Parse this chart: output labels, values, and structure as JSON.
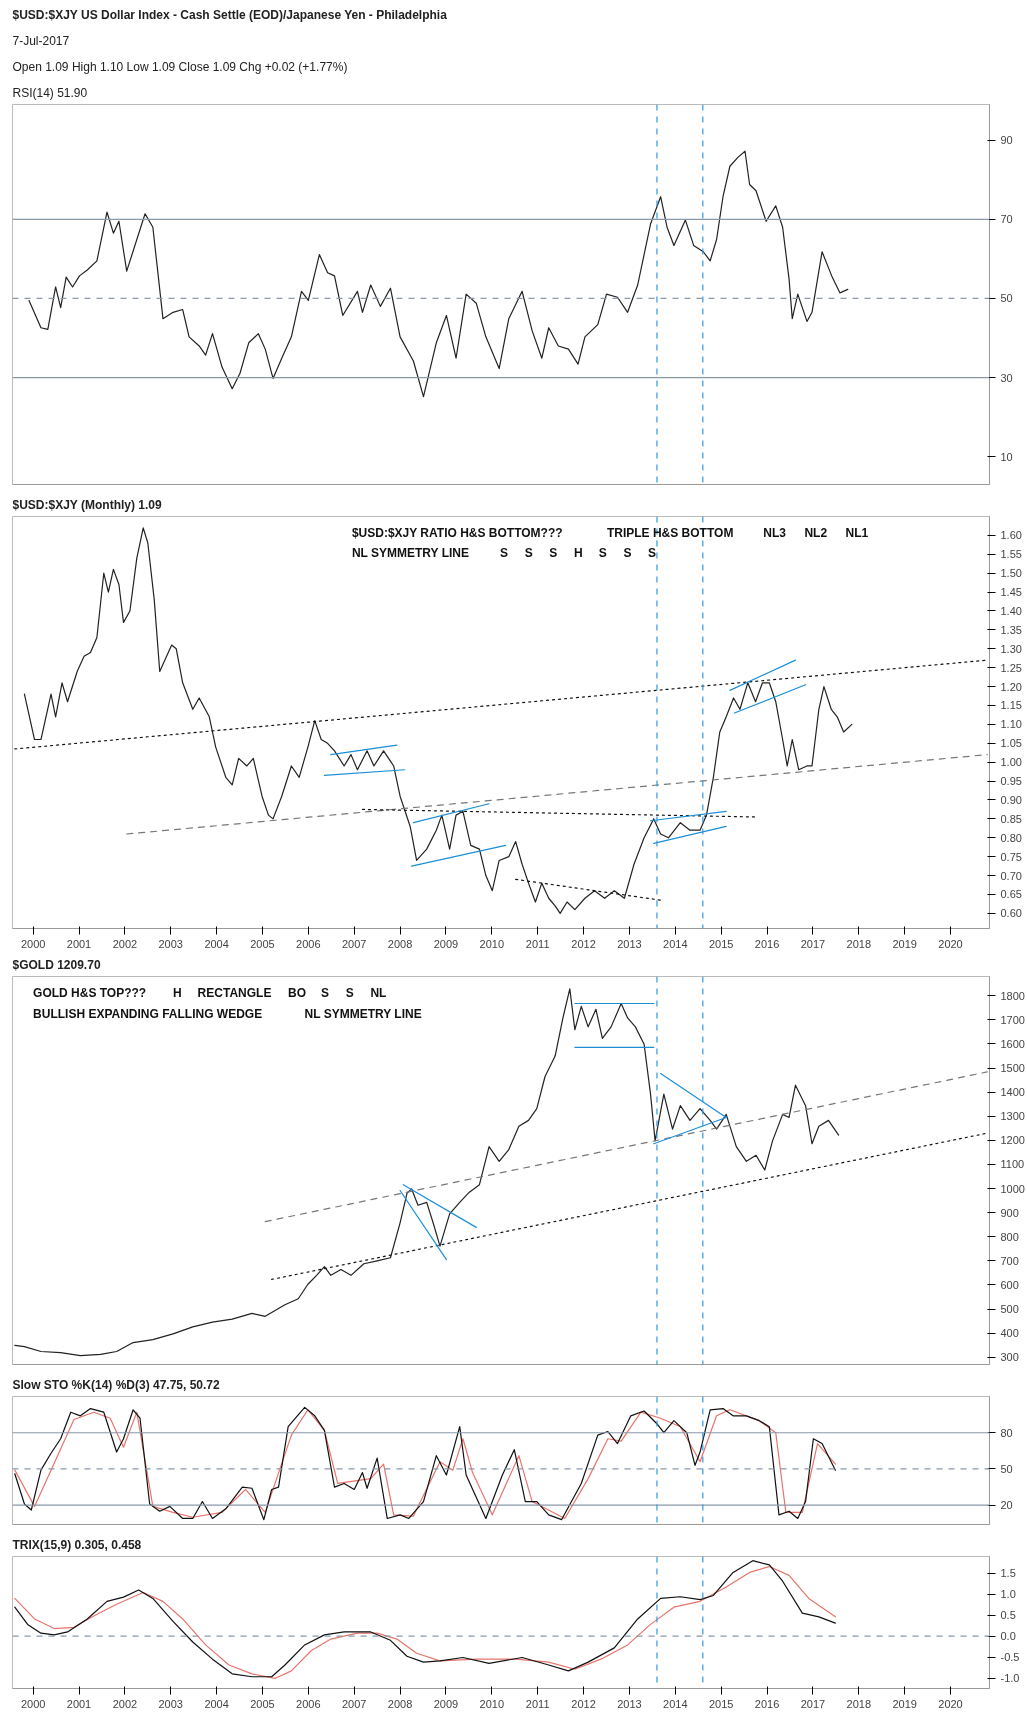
{
  "chart_data": [
    {
      "type": "line",
      "title": "$USD:$XJY US Dollar Index - Cash Settle (EOD)/Japanese Yen - Philadelphia",
      "subtitle": "7-Jul-2017",
      "annotations": [
        "Open 1.09 High 1.10 Low 1.09 Close 1.09 Chg +0.02 (+1.77%)",
        "RSI(14) 51.90"
      ],
      "xlim": [
        1999.55,
        2020.85
      ],
      "xticks": [
        2000,
        2001,
        2002,
        2003,
        2004,
        2005,
        2006,
        2007,
        2008,
        2009,
        2010,
        2011,
        2012,
        2013,
        2014,
        2015,
        2016,
        2017,
        2018,
        2019,
        2020
      ],
      "tick_labels": "y",
      "ylim": [
        3,
        99
      ],
      "yticks": [
        10,
        30,
        50,
        70,
        90
      ],
      "ref_lines": [
        {
          "axis": "y",
          "value": 30,
          "color": "#8899aa",
          "line_style": "solid"
        },
        {
          "axis": "y",
          "value": 50,
          "color": "#8899aa",
          "line_style": "dashed"
        },
        {
          "axis": "y",
          "value": 70,
          "color": "#8899aa",
          "line_style": "solid"
        },
        {
          "axis": "x",
          "value": 2013.6,
          "color": "#3399dd",
          "line_style": "dashed"
        },
        {
          "axis": "x",
          "value": 2014.6,
          "color": "#3399dd",
          "line_style": "dashed"
        }
      ],
      "series": [
        {
          "color": "#222222",
          "x": [
            1999.91,
            2000.17,
            2000.32,
            2000.49,
            2000.6,
            2000.72,
            2000.86,
            2001.01,
            2001.18,
            2001.39,
            2001.61,
            2001.75,
            2001.87,
            2002.04,
            2002.44,
            2002.61,
            2002.83,
            2003.05,
            2003.26,
            2003.4,
            2003.62,
            2003.76,
            2003.91,
            2004.12,
            2004.34,
            2004.51,
            2004.7,
            2004.91,
            2005.06,
            2005.23,
            2005.42,
            2005.63,
            2005.85,
            2006.0,
            2006.24,
            2006.42,
            2006.57,
            2006.75,
            2007.07,
            2007.18,
            2007.36,
            2007.57,
            2007.79,
            2008.0,
            2008.29,
            2008.51,
            2008.79,
            2009.01,
            2009.22,
            2009.44,
            2009.66,
            2009.87,
            2010.16,
            2010.37,
            2010.66,
            2010.88,
            2011.09,
            2011.24,
            2011.45,
            2011.67,
            2011.88,
            2012.03,
            2012.31,
            2012.5,
            2012.74,
            2012.96,
            2013.18,
            2013.46,
            2013.68,
            2013.82,
            2013.97,
            2014.22,
            2014.4,
            2014.61,
            2014.76,
            2014.9,
            2015.04,
            2015.19,
            2015.37,
            2015.52,
            2015.62,
            2015.76,
            2015.98,
            2016.19,
            2016.34,
            2016.48,
            2016.55,
            2016.67,
            2016.87,
            2016.98,
            2017.2,
            2017.41,
            2017.59,
            2017.76
          ],
          "values": [
            49.5,
            42.6,
            42.2,
            52.9,
            47.7,
            55.4,
            52.9,
            55.7,
            57.2,
            59.5,
            71.8,
            66.5,
            69.5,
            56.9,
            71.4,
            68,
            44.9,
            46.5,
            47.2,
            40.3,
            38,
            35.7,
            41.1,
            32.6,
            27.2,
            31.1,
            38.8,
            41.1,
            37.2,
            29.8,
            34.9,
            40.3,
            51.8,
            49.5,
            61.1,
            56.5,
            55.7,
            45.7,
            51.8,
            46.5,
            53.4,
            48,
            52.6,
            40.3,
            34.2,
            25.2,
            38.8,
            45.7,
            34.9,
            51.1,
            48.8,
            40.3,
            32.3,
            44.9,
            51.8,
            41.8,
            34.9,
            42.6,
            38,
            37.2,
            33.4,
            40.3,
            43.4,
            51.1,
            50.3,
            46.5,
            53.4,
            68.8,
            75.7,
            68,
            63.4,
            69.8,
            63.4,
            61.8,
            59.5,
            64.9,
            75.7,
            83.4,
            85.7,
            87.2,
            78.8,
            77.2,
            69.5,
            73.4,
            68,
            54.9,
            44.9,
            51.1,
            44.2,
            46.5,
            61.8,
            55.7,
            51.4,
            52.3
          ]
        }
      ]
    },
    {
      "type": "line",
      "title": "$USD:$XJY (Monthly) 1.09",
      "annotations": [
        "$USD:$XJY RATIO H&S BOTTOM???",
        "TRIPLE H&S BOTTOM",
        "NL3",
        "NL2",
        "NL1",
        "NL SYMMETRY LINE",
        "S",
        "S",
        "S",
        "H",
        "S",
        "S",
        "S"
      ],
      "xlim": [
        1999.55,
        2020.85
      ],
      "xticks": [
        2000,
        2001,
        2002,
        2003,
        2004,
        2005,
        2006,
        2007,
        2008,
        2009,
        2010,
        2011,
        2012,
        2013,
        2014,
        2015,
        2016,
        2017,
        2018,
        2019,
        2020
      ],
      "ylim": [
        0.56,
        1.65
      ],
      "yticks": [
        {
          "value": 0.6,
          "label": "0.60"
        },
        {
          "value": 0.65,
          "label": "0.65"
        },
        {
          "value": 0.7,
          "label": "0.70"
        },
        {
          "value": 0.75,
          "label": "0.75"
        },
        {
          "value": 0.8,
          "label": "0.80"
        },
        {
          "value": 0.85,
          "label": "0.85"
        },
        {
          "value": 0.9,
          "label": "0.90"
        },
        {
          "value": 0.95,
          "label": "0.95"
        },
        {
          "value": 1.0,
          "label": "1.00"
        },
        {
          "value": 1.05,
          "label": "1.05"
        },
        {
          "value": 1.1,
          "label": "1.10"
        },
        {
          "value": 1.15,
          "label": "1.15"
        },
        {
          "value": 1.2,
          "label": "1.20"
        },
        {
          "value": 1.25,
          "label": "1.25"
        },
        {
          "value": 1.3,
          "label": "1.30"
        },
        {
          "value": 1.35,
          "label": "1.35"
        },
        {
          "value": 1.4,
          "label": "1.40"
        },
        {
          "value": 1.45,
          "label": "1.45"
        },
        {
          "value": 1.5,
          "label": "1.50"
        },
        {
          "value": 1.55,
          "label": "1.55"
        },
        {
          "value": 1.6,
          "label": "1.60"
        }
      ],
      "ref_lines": [
        {
          "axis": "x",
          "value": 2013.6,
          "color": "#3399dd",
          "line_style": "dashed"
        },
        {
          "axis": "x",
          "value": 2014.6,
          "color": "#3399dd",
          "line_style": "dashed"
        }
      ],
      "series": [
        {
          "color": "#222222",
          "x": [
            1999.81,
            2000.03,
            2000.17,
            2000.39,
            2000.49,
            2000.63,
            2000.75,
            2000.96,
            2001.11,
            2001.25,
            2001.39,
            2001.54,
            2001.64,
            2001.75,
            2001.87,
            2001.97,
            2002.11,
            2002.26,
            2002.4,
            2002.5,
            2002.64,
            2002.76,
            2002.87,
            2003.02,
            2003.12,
            2003.26,
            2003.48,
            2003.62,
            2003.84,
            2003.98,
            2004.2,
            2004.34,
            2004.48,
            2004.66,
            2004.8,
            2004.99,
            2005.13,
            2005.23,
            2005.42,
            2005.63,
            2005.8,
            2005.99,
            2006.14,
            2006.28,
            2006.42,
            2006.57,
            2006.78,
            2006.93,
            2007.07,
            2007.28,
            2007.43,
            2007.64,
            2007.86,
            2008.0,
            2008.22,
            2008.36,
            2008.58,
            2008.79,
            2008.91,
            2009.08,
            2009.22,
            2009.37,
            2009.54,
            2009.73,
            2009.87,
            2010.01,
            2010.16,
            2010.37,
            2010.52,
            2010.66,
            2010.8,
            2010.95,
            2011.09,
            2011.24,
            2011.38,
            2011.49,
            2011.64,
            2011.81,
            2012.03,
            2012.24,
            2012.46,
            2012.67,
            2012.89,
            2013.1,
            2013.32,
            2013.53,
            2013.68,
            2013.85,
            2014.11,
            2014.32,
            2014.54,
            2014.68,
            2014.83,
            2014.97,
            2015.11,
            2015.27,
            2015.41,
            2015.58,
            2015.75,
            2015.9,
            2016.05,
            2016.19,
            2016.34,
            2016.44,
            2016.55,
            2016.69,
            2016.87,
            2016.98,
            2017.13,
            2017.24,
            2017.4,
            2017.53,
            2017.67,
            2017.85
          ],
          "values": [
            1.18,
            1.06,
            1.06,
            1.18,
            1.12,
            1.21,
            1.16,
            1.24,
            1.28,
            1.29,
            1.33,
            1.5,
            1.45,
            1.51,
            1.47,
            1.37,
            1.4,
            1.54,
            1.62,
            1.58,
            1.43,
            1.24,
            1.27,
            1.31,
            1.3,
            1.21,
            1.14,
            1.17,
            1.12,
            1.04,
            0.96,
            0.94,
            1.01,
            0.99,
            1.01,
            0.91,
            0.86,
            0.85,
            0.91,
            0.99,
            0.96,
            1.04,
            1.11,
            1.06,
            1.05,
            1.03,
            0.99,
            1.02,
            0.98,
            1.03,
            0.99,
            1.03,
            0.99,
            0.91,
            0.83,
            0.74,
            0.77,
            0.82,
            0.86,
            0.77,
            0.86,
            0.87,
            0.78,
            0.77,
            0.7,
            0.66,
            0.74,
            0.75,
            0.79,
            0.73,
            0.68,
            0.63,
            0.68,
            0.64,
            0.62,
            0.6,
            0.63,
            0.61,
            0.64,
            0.66,
            0.64,
            0.66,
            0.64,
            0.73,
            0.8,
            0.85,
            0.81,
            0.8,
            0.84,
            0.82,
            0.82,
            0.86,
            0.96,
            1.08,
            1.12,
            1.17,
            1.14,
            1.21,
            1.16,
            1.21,
            1.21,
            1.16,
            1.06,
            0.99,
            1.06,
            0.98,
            0.99,
            0.99,
            1.14,
            1.2,
            1.14,
            1.12,
            1.08,
            1.1
          ]
        },
        {
          "type": "line",
          "color": "#111111",
          "line_style": "dotted",
          "x": [
            1999.6,
            2020.8
          ],
          "values": [
            1.035,
            1.27
          ]
        },
        {
          "type": "line",
          "color": "#777777",
          "line_style": "dashed",
          "x": [
            2002.04,
            2020.8
          ],
          "values": [
            0.81,
            1.02
          ]
        },
        {
          "type": "line",
          "color": "#111111",
          "line_style": "dotted",
          "x": [
            2007.18,
            2015.76
          ],
          "values": [
            0.875,
            0.855
          ]
        },
        {
          "type": "line",
          "color": "#111111",
          "line_style": "dotted",
          "x": [
            2010.52,
            2013.68
          ],
          "values": [
            0.69,
            0.635
          ]
        },
        {
          "type": "line",
          "color": "#1a8fd8",
          "line_style": "solid",
          "x": [
            2006.49,
            2007.93
          ],
          "values": [
            1.02,
            1.045
          ]
        },
        {
          "type": "line",
          "color": "#1a8fd8",
          "line_style": "solid",
          "x": [
            2006.35,
            2008.1
          ],
          "values": [
            0.965,
            0.98
          ]
        },
        {
          "type": "line",
          "color": "#1a8fd8",
          "line_style": "solid",
          "x": [
            2008.29,
            2009.94
          ],
          "values": [
            0.84,
            0.89
          ]
        },
        {
          "type": "line",
          "color": "#1a8fd8",
          "line_style": "solid",
          "x": [
            2008.25,
            2010.3
          ],
          "values": [
            0.725,
            0.78
          ]
        },
        {
          "type": "line",
          "color": "#1a8fd8",
          "line_style": "solid",
          "x": [
            2013.46,
            2015.11
          ],
          "values": [
            0.845,
            0.87
          ]
        },
        {
          "type": "line",
          "color": "#1a8fd8",
          "line_style": "solid",
          "x": [
            2013.53,
            2015.11
          ],
          "values": [
            0.785,
            0.83
          ]
        },
        {
          "type": "line",
          "color": "#1a8fd8",
          "line_style": "solid",
          "x": [
            2015.19,
            2016.62
          ],
          "values": [
            1.19,
            1.27
          ]
        },
        {
          "type": "line",
          "color": "#1a8fd8",
          "line_style": "solid",
          "x": [
            2015.29,
            2016.84
          ],
          "values": [
            1.13,
            1.205
          ]
        }
      ]
    },
    {
      "type": "line",
      "title": "$GOLD 1209.70",
      "annotations": [
        "GOLD H&S TOP???",
        "H",
        "RECTANGLE",
        "BO",
        "S",
        "S",
        "NL",
        "BULLISH EXPANDING FALLING WEDGE",
        "NL SYMMETRY LINE"
      ],
      "xlim": [
        1999.55,
        2020.85
      ],
      "xticks": [
        2000,
        2001,
        2002,
        2003,
        2004,
        2005,
        2006,
        2007,
        2008,
        2009,
        2010,
        2011,
        2012,
        2013,
        2014,
        2015,
        2016,
        2017,
        2018,
        2019,
        2020
      ],
      "tick_labels": "y",
      "ylim": [
        270,
        1880
      ],
      "yticks": [
        300,
        400,
        500,
        600,
        700,
        800,
        900,
        1000,
        1100,
        1200,
        1300,
        1400,
        1500,
        1600,
        1700,
        1800
      ],
      "ref_lines": [
        {
          "axis": "x",
          "value": 2013.6,
          "color": "#3399dd",
          "line_style": "dashed"
        },
        {
          "axis": "x",
          "value": 2014.6,
          "color": "#3399dd",
          "line_style": "dashed"
        }
      ],
      "series": [
        {
          "color": "#222222",
          "x": [
            1999.6,
            1999.81,
            2000.17,
            2000.6,
            2001.03,
            2001.47,
            2001.82,
            2002.18,
            2002.61,
            2003.05,
            2003.48,
            2003.91,
            2004.34,
            2004.77,
            2005.06,
            2005.49,
            2005.78,
            2005.99,
            2006.18,
            2006.35,
            2006.49,
            2006.71,
            2006.93,
            2007.21,
            2007.5,
            2007.79,
            2008.0,
            2008.15,
            2008.25,
            2008.39,
            2008.58,
            2008.72,
            2008.87,
            2009.08,
            2009.3,
            2009.51,
            2009.73,
            2009.94,
            2010.16,
            2010.37,
            2010.59,
            2010.8,
            2010.98,
            2011.16,
            2011.38,
            2011.55,
            2011.7,
            2011.81,
            2011.95,
            2012.1,
            2012.27,
            2012.41,
            2012.6,
            2012.82,
            2012.96,
            2013.13,
            2013.32,
            2013.46,
            2013.56,
            2013.75,
            2013.94,
            2014.11,
            2014.32,
            2014.54,
            2014.76,
            2014.9,
            2015.11,
            2015.33,
            2015.55,
            2015.76,
            2015.95,
            2016.12,
            2016.34,
            2016.48,
            2016.62,
            2016.84,
            2016.98,
            2017.13,
            2017.34,
            2017.56
          ],
          "values": [
            349,
            344,
            324,
            319,
            307,
            312,
            324,
            361,
            373,
            397,
            426,
            446,
            458,
            482,
            470,
            518,
            543,
            603,
            640,
            676,
            640,
            664,
            640,
            688,
            700,
            713,
            858,
            980,
            999,
            931,
            943,
            858,
            761,
            895,
            943,
            985,
            1016,
            1174,
            1113,
            1162,
            1259,
            1283,
            1332,
            1465,
            1550,
            1708,
            1829,
            1659,
            1756,
            1671,
            1744,
            1623,
            1671,
            1768,
            1708,
            1671,
            1599,
            1392,
            1198,
            1392,
            1247,
            1344,
            1283,
            1332,
            1283,
            1247,
            1308,
            1174,
            1113,
            1138,
            1077,
            1198,
            1308,
            1295,
            1429,
            1344,
            1186,
            1259,
            1283,
            1222
          ]
        },
        {
          "type": "line",
          "color": "#111111",
          "line_style": "dotted",
          "x": [
            2005.2,
            2020.8
          ],
          "values": [
            623,
            1230
          ]
        },
        {
          "type": "line",
          "color": "#777777",
          "line_style": "dashed",
          "x": [
            2005.06,
            2020.8
          ],
          "values": [
            863,
            1484
          ]
        },
        {
          "type": "line",
          "color": "#1a8fd8",
          "line_style": "solid",
          "x": [
            2011.81,
            2013.53
          ],
          "values": [
            1768,
            1768
          ]
        },
        {
          "type": "line",
          "color": "#1a8fd8",
          "line_style": "solid",
          "x": [
            2011.81,
            2013.53
          ],
          "values": [
            1586,
            1586
          ]
        },
        {
          "type": "line",
          "color": "#1a8fd8",
          "line_style": "solid",
          "x": [
            2008.07,
            2009.66
          ],
          "values": [
            1016,
            839
          ]
        },
        {
          "type": "line",
          "color": "#1a8fd8",
          "line_style": "solid",
          "x": [
            2008.0,
            2009.01
          ],
          "values": [
            992,
            705
          ]
        },
        {
          "type": "line",
          "color": "#1a8fd8",
          "line_style": "solid",
          "x": [
            2013.68,
            2015.11
          ],
          "values": [
            1477,
            1295
          ]
        },
        {
          "type": "line",
          "color": "#1a8fd8",
          "line_style": "solid",
          "x": [
            2013.53,
            2015.11
          ],
          "values": [
            1186,
            1295
          ]
        }
      ]
    },
    {
      "type": "line",
      "title": "Slow STO %K(14) %D(3) 47.75, 50.72",
      "xlim": [
        1999.55,
        2020.85
      ],
      "xticks": [
        2000,
        2001,
        2002,
        2003,
        2004,
        2005,
        2006,
        2007,
        2008,
        2009,
        2010,
        2011,
        2012,
        2013,
        2014,
        2015,
        2016,
        2017,
        2018,
        2019,
        2020
      ],
      "tick_labels": "y",
      "ylim": [
        4,
        110
      ],
      "yticks": [
        20,
        50,
        80
      ],
      "ref_lines": [
        {
          "axis": "y",
          "value": 20,
          "color": "#8899aa",
          "line_style": "solid"
        },
        {
          "axis": "y",
          "value": 50,
          "color": "#8899aa",
          "line_style": "dashed"
        },
        {
          "axis": "y",
          "value": 80,
          "color": "#8899aa",
          "line_style": "solid"
        },
        {
          "axis": "x",
          "value": 2013.6,
          "color": "#3399dd",
          "line_style": "dashed"
        },
        {
          "axis": "x",
          "value": 2014.6,
          "color": "#3399dd",
          "line_style": "dashed"
        }
      ],
      "series": [
        {
          "color": "#e8746c",
          "x": [
            1999.6,
            2000.03,
            2000.39,
            2000.89,
            2001.32,
            2001.68,
            2001.97,
            2002.26,
            2002.61,
            2003.05,
            2003.48,
            2004.12,
            2004.63,
            2005.06,
            2005.63,
            2005.99,
            2006.35,
            2006.64,
            2007.36,
            2007.64,
            2007.86,
            2008.29,
            2008.87,
            2009.15,
            2009.37,
            2009.58,
            2010.01,
            2010.59,
            2010.88,
            2011.59,
            2012.1,
            2012.53,
            2012.82,
            2013.25,
            2013.68,
            2014.11,
            2014.54,
            2014.9,
            2015.19,
            2015.83,
            2016.19,
            2016.41,
            2016.77,
            2017.1,
            2017.49
          ],
          "values": [
            49,
            19,
            49,
            91,
            97,
            92,
            68,
            97,
            19,
            14,
            10,
            14,
            33,
            14,
            78,
            99,
            82,
            38,
            42,
            54,
            12,
            11,
            56,
            49,
            75,
            47,
            12,
            61,
            23,
            9,
            42,
            75,
            73,
            97,
            92,
            85,
            56,
            94,
            99,
            90,
            80,
            14,
            14,
            71,
            54
          ]
        },
        {
          "color": "#111111",
          "x": [
            1999.6,
            1999.81,
            1999.96,
            2000.17,
            2000.39,
            2000.6,
            2000.82,
            2001.03,
            2001.25,
            2001.54,
            2001.82,
            2001.97,
            2002.18,
            2002.33,
            2002.54,
            2002.76,
            2002.98,
            2003.26,
            2003.48,
            2003.69,
            2003.91,
            2004.2,
            2004.56,
            2004.77,
            2005.03,
            2005.2,
            2005.35,
            2005.56,
            2005.92,
            2006.14,
            2006.35,
            2006.57,
            2006.78,
            2007.0,
            2007.18,
            2007.28,
            2007.5,
            2007.72,
            2008.0,
            2008.19,
            2008.51,
            2008.79,
            2009.01,
            2009.3,
            2009.44,
            2009.87,
            2010.23,
            2010.49,
            2010.73,
            2010.98,
            2011.24,
            2011.52,
            2011.95,
            2012.31,
            2012.53,
            2012.74,
            2013.03,
            2013.32,
            2013.61,
            2013.75,
            2013.97,
            2014.25,
            2014.43,
            2014.54,
            2014.76,
            2015.04,
            2015.26,
            2015.55,
            2015.83,
            2016.05,
            2016.26,
            2016.48,
            2016.67,
            2016.84,
            2017.01,
            2017.2,
            2017.49
          ],
          "values": [
            46,
            21,
            16,
            49,
            63,
            75,
            97,
            94,
            100,
            97,
            64,
            75,
            99,
            92,
            21,
            15,
            19,
            9,
            9,
            23,
            9,
            17,
            35,
            34,
            8,
            33,
            35,
            85,
            101,
            94,
            82,
            35,
            38,
            33,
            47,
            34,
            59,
            9,
            12,
            9,
            23,
            61,
            45,
            85,
            45,
            9,
            45,
            66,
            23,
            23,
            12,
            8,
            38,
            78,
            81,
            71,
            94,
            98,
            87,
            80,
            90,
            80,
            53,
            64,
            99,
            100,
            94,
            94,
            90,
            85,
            12,
            15,
            9,
            23,
            75,
            71,
            49
          ]
        }
      ]
    },
    {
      "type": "line",
      "title": "TRIX(15,9) 0.305, 0.458",
      "xlim": [
        1999.55,
        2020.85
      ],
      "xticks": [
        2000,
        2001,
        2002,
        2003,
        2004,
        2005,
        2006,
        2007,
        2008,
        2009,
        2010,
        2011,
        2012,
        2013,
        2014,
        2015,
        2016,
        2017,
        2018,
        2019,
        2020
      ],
      "ylim": [
        -1.25,
        1.9
      ],
      "yticks": [
        {
          "value": -1.0,
          "label": "-1.0"
        },
        {
          "value": -0.5,
          "label": "-0.5"
        },
        {
          "value": 0.0,
          "label": "0.0"
        },
        {
          "value": 0.5,
          "label": "0.5"
        },
        {
          "value": 1.0,
          "label": "1.0"
        },
        {
          "value": 1.5,
          "label": "1.5"
        }
      ],
      "ref_lines": [
        {
          "axis": "y",
          "value": 0,
          "color": "#8899aa",
          "line_style": "dashed"
        },
        {
          "axis": "x",
          "value": 2013.6,
          "color": "#3399dd",
          "line_style": "dashed"
        },
        {
          "axis": "x",
          "value": 2014.6,
          "color": "#3399dd",
          "line_style": "dashed"
        }
      ],
      "series": [
        {
          "color": "#e8746c",
          "x": [
            1999.6,
            2000.03,
            2000.46,
            2000.89,
            2001.32,
            2001.82,
            2002.4,
            2002.83,
            2003.26,
            2003.76,
            2004.27,
            2004.77,
            2005.27,
            2005.63,
            2006.06,
            2006.49,
            2007.07,
            2007.5,
            2007.93,
            2008.36,
            2008.87,
            2009.66,
            2010.52,
            2011.24,
            2011.81,
            2012.38,
            2012.96,
            2013.46,
            2013.97,
            2014.54,
            2015.11,
            2015.62,
            2016.05,
            2016.48,
            2016.91,
            2017.49
          ],
          "values": [
            0.9,
            0.41,
            0.18,
            0.21,
            0.48,
            0.76,
            1.04,
            0.83,
            0.41,
            -0.21,
            -0.69,
            -0.9,
            -1.01,
            -0.83,
            -0.35,
            -0.07,
            0.07,
            0.07,
            -0.07,
            -0.41,
            -0.59,
            -0.55,
            -0.55,
            -0.62,
            -0.79,
            -0.55,
            -0.21,
            0.28,
            0.69,
            0.83,
            1.17,
            1.52,
            1.66,
            1.45,
            0.9,
            0.46
          ]
        },
        {
          "color": "#111111",
          "x": [
            1999.6,
            1999.88,
            2000.17,
            2000.46,
            2000.75,
            2001.18,
            2001.61,
            2001.97,
            2002.3,
            2002.61,
            2003.05,
            2003.48,
            2003.91,
            2004.34,
            2004.77,
            2005.2,
            2005.49,
            2005.92,
            2006.35,
            2006.78,
            2007.36,
            2007.79,
            2008.15,
            2008.51,
            2008.87,
            2009.37,
            2009.94,
            2010.66,
            2011.24,
            2011.67,
            2012.1,
            2012.67,
            2013.18,
            2013.68,
            2014.11,
            2014.54,
            2014.83,
            2015.26,
            2015.69,
            2016.05,
            2016.34,
            2016.77,
            2017.13,
            2017.49
          ],
          "values": [
            0.69,
            0.28,
            0.07,
            0.03,
            0.1,
            0.41,
            0.83,
            0.93,
            1.1,
            0.9,
            0.35,
            -0.14,
            -0.55,
            -0.9,
            -0.97,
            -0.97,
            -0.69,
            -0.21,
            0.03,
            0.1,
            0.1,
            -0.1,
            -0.48,
            -0.62,
            -0.59,
            -0.51,
            -0.65,
            -0.51,
            -0.69,
            -0.83,
            -0.62,
            -0.28,
            0.41,
            0.9,
            0.94,
            0.87,
            0.97,
            1.52,
            1.8,
            1.7,
            1.31,
            0.55,
            0.46,
            0.31
          ]
        }
      ]
    }
  ]
}
